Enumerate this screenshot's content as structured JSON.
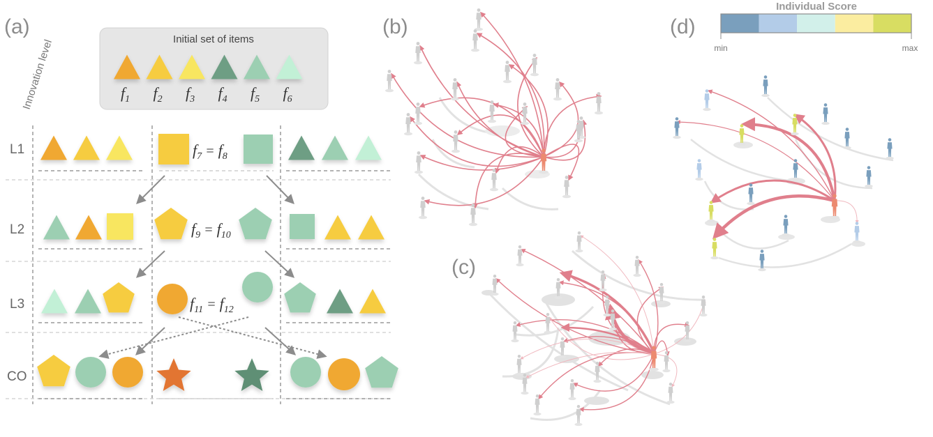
{
  "panels": {
    "a": "(a)",
    "b": "(b)",
    "c": "(c)",
    "d": "(d)"
  },
  "panel_a": {
    "axis_title": "Innovation level",
    "initial_box_title": "Initial set of items",
    "items": [
      {
        "sym": "f",
        "sub": "1",
        "color": "#f0a830"
      },
      {
        "sym": "f",
        "sub": "2",
        "color": "#f6cc40"
      },
      {
        "sym": "f",
        "sub": "3",
        "color": "#f8e660"
      },
      {
        "sym": "f",
        "sub": "4",
        "color": "#6e9e84"
      },
      {
        "sym": "f",
        "sub": "5",
        "color": "#9ccfb2"
      },
      {
        "sym": "f",
        "sub": "6",
        "color": "#c2f0d6"
      }
    ],
    "levels": [
      "L1",
      "L2",
      "L3",
      "CO"
    ],
    "equations": [
      {
        "left": "7",
        "right": "8"
      },
      {
        "left": "9",
        "right": "10"
      },
      {
        "left": "11",
        "right": "12"
      }
    ],
    "shape_colors": {
      "orange": "#f0a830",
      "yellow": "#f6cc40",
      "lightyellow": "#f8e660",
      "darkgreen": "#6e9e84",
      "green": "#9ccfb2",
      "mint": "#c2f0d6",
      "star_orange": "#e27430",
      "star_green": "#5f8f74"
    }
  },
  "panel_d": {
    "scale_title": "Individual Score",
    "scale_min": "min",
    "scale_max": "max",
    "scale_colors": [
      "#7a9fbd",
      "#b3cce8",
      "#d2f0ea",
      "#fbeda0",
      "#d8dd62"
    ]
  },
  "network_colors": {
    "person_grey": "#cfcfcf",
    "highlight_person": "#ec8a70",
    "edge_pink": "#e07f8c",
    "faint_edge": "#e2e2e2"
  }
}
